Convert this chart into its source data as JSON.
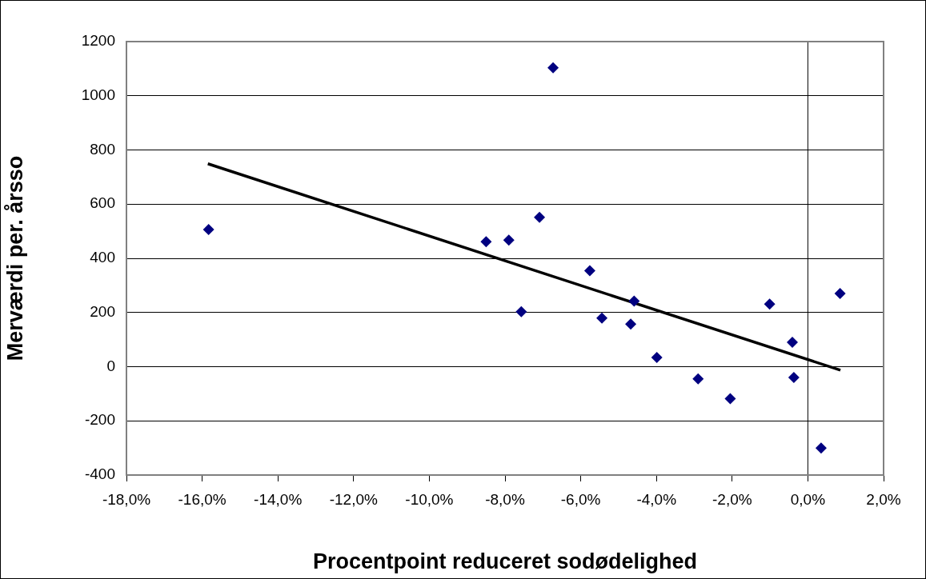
{
  "chart_data": {
    "type": "scatter",
    "xlabel": "Procentpoint reduceret sodødelighed",
    "ylabel": "Merværdi per. årsso",
    "series": [
      {
        "type": "scatter",
        "color": "#000080",
        "marker": "diamond",
        "x": [
          -15.83,
          -8.5,
          -7.9,
          -7.09,
          -7.57,
          -6.73,
          -5.76,
          -5.44,
          -4.59,
          -4.68,
          -3.99,
          -2.9,
          -2.05,
          -1.01,
          -0.41,
          -0.37,
          0.35,
          0.85
        ],
        "values": [
          506,
          461,
          467,
          551,
          203,
          1103,
          354,
          179,
          242,
          157,
          34,
          -45,
          -118,
          231,
          90,
          -40,
          -300,
          270
        ]
      },
      {
        "type": "line",
        "color": "#000000",
        "marker": "none",
        "x": [
          -15.85,
          0.86
        ],
        "values": [
          749,
          -13
        ]
      }
    ],
    "xlim": [
      -18,
      2
    ],
    "xticks": [
      {
        "value": -18,
        "label": "-18,0%"
      },
      {
        "value": -16,
        "label": "-16,0%"
      },
      {
        "value": -14,
        "label": "-14,0%"
      },
      {
        "value": -12,
        "label": "-12,0%"
      },
      {
        "value": -10,
        "label": "-10,0%"
      },
      {
        "value": -8,
        "label": "-8,0%"
      },
      {
        "value": -6,
        "label": "-6,0%"
      },
      {
        "value": -4,
        "label": "-4,0%"
      },
      {
        "value": -2,
        "label": "-2,0%"
      },
      {
        "value": 0,
        "label": "0,0%"
      },
      {
        "value": 2,
        "label": "2,0%"
      }
    ],
    "ylim": [
      -400,
      1200
    ],
    "yticks": [
      -400,
      -200,
      0,
      200,
      400,
      600,
      800,
      1000,
      1200
    ],
    "grid": "y",
    "ref_lines": [
      {
        "axis": "x",
        "value": 0,
        "color": "#000000"
      }
    ]
  }
}
